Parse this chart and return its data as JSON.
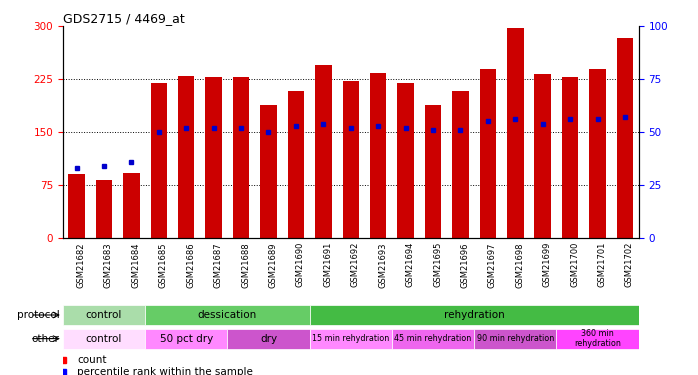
{
  "title": "GDS2715 / 4469_at",
  "samples": [
    "GSM21682",
    "GSM21683",
    "GSM21684",
    "GSM21685",
    "GSM21686",
    "GSM21687",
    "GSM21688",
    "GSM21689",
    "GSM21690",
    "GSM21691",
    "GSM21692",
    "GSM21693",
    "GSM21694",
    "GSM21695",
    "GSM21696",
    "GSM21697",
    "GSM21698",
    "GSM21699",
    "GSM21700",
    "GSM21701",
    "GSM21702"
  ],
  "count_values": [
    90,
    82,
    92,
    220,
    230,
    228,
    228,
    188,
    208,
    245,
    222,
    233,
    220,
    188,
    208,
    240,
    297,
    232,
    228,
    240,
    283
  ],
  "percentile_values": [
    33,
    34,
    36,
    50,
    52,
    52,
    52,
    50,
    53,
    54,
    52,
    53,
    52,
    51,
    51,
    55,
    56,
    54,
    56,
    56,
    57
  ],
  "bar_color": "#cc0000",
  "dot_color": "#0000cc",
  "ylim_left": [
    0,
    300
  ],
  "ylim_right": [
    0,
    100
  ],
  "yticks_left": [
    0,
    75,
    150,
    225,
    300
  ],
  "yticks_right": [
    0,
    25,
    50,
    75,
    100
  ],
  "grid_lines": [
    75,
    150,
    225
  ],
  "proto_control_color": "#aaddaa",
  "proto_dessication_color": "#66cc66",
  "proto_rehydration_color": "#44bb44",
  "other_control_color": "#ffddff",
  "other_50pct_color": "#ff88ff",
  "other_dry_color": "#cc55cc",
  "other_15min_color": "#ff88ff",
  "other_45min_color": "#ee66ee",
  "other_90min_color": "#cc55cc",
  "other_360min_color": "#ff44ff",
  "protocol_groups": [
    {
      "label": "control",
      "start": 0,
      "end": 3
    },
    {
      "label": "dessication",
      "start": 3,
      "end": 9
    },
    {
      "label": "rehydration",
      "start": 9,
      "end": 21
    }
  ],
  "other_groups": [
    {
      "label": "control",
      "start": 0,
      "end": 3
    },
    {
      "label": "50 pct dry",
      "start": 3,
      "end": 6
    },
    {
      "label": "dry",
      "start": 6,
      "end": 9
    },
    {
      "label": "15 min rehydration",
      "start": 9,
      "end": 12
    },
    {
      "label": "45 min rehydration",
      "start": 12,
      "end": 15
    },
    {
      "label": "90 min rehydration",
      "start": 15,
      "end": 18
    },
    {
      "label": "360 min\nrehydration",
      "start": 18,
      "end": 21
    }
  ],
  "protocol_label": "protocol",
  "other_label": "other",
  "legend_count_label": "count",
  "legend_pct_label": "percentile rank within the sample"
}
